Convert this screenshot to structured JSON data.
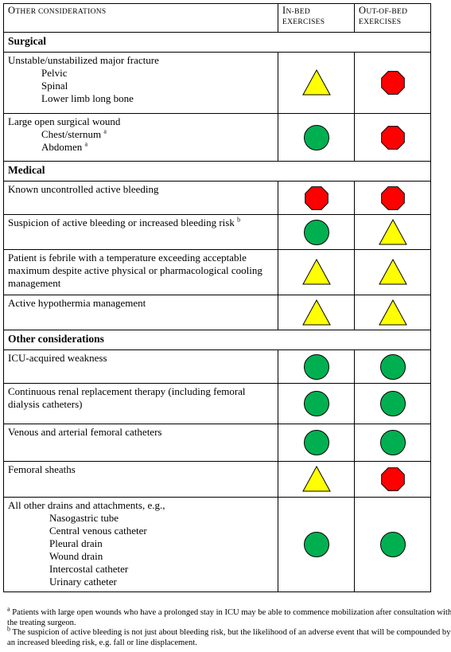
{
  "header": {
    "col1_prefix": "O",
    "col1_rest": "ther considerations",
    "col2_line1_prefix": "I",
    "col2_line1_rest": "n-bed",
    "col2_line2": "exercises",
    "col3_line1_prefix": "O",
    "col3_line1_rest": "ut-of-bed",
    "col3_line2": "exercises"
  },
  "sections": [
    {
      "title": "Surgical",
      "rows": [
        {
          "label": "Unstable/unstabilized major fracture",
          "subs": [
            "Pelvic",
            "Spinal",
            "Lower limb long bone"
          ],
          "sub_sup": [],
          "in_bed": "triangle",
          "out_bed": "octagon",
          "height": 77
        },
        {
          "label": "Large open surgical wound",
          "subs": [
            "Chest/sternum",
            "Abdomen"
          ],
          "sub_sup": [
            "a",
            "a"
          ],
          "in_bed": "circle",
          "out_bed": "octagon",
          "height": 60
        }
      ]
    },
    {
      "title": "Medical",
      "rows": [
        {
          "label": "Known uncontrolled active bleeding",
          "subs": [],
          "sub_sup": [],
          "in_bed": "octagon",
          "out_bed": "octagon",
          "height": 42
        },
        {
          "label": "Suspicion of active bleeding or increased bleeding risk",
          "label_sup": "b",
          "subs": [],
          "sub_sup": [],
          "in_bed": "circle",
          "out_bed": "triangle",
          "height": 44
        },
        {
          "label": "Patient is febrile with a temperature exceeding acceptable maximum despite active physical or pharmacological cooling management",
          "subs": [],
          "sub_sup": [],
          "in_bed": "triangle",
          "out_bed": "triangle",
          "height": 57
        },
        {
          "label": "Active hypothermia management",
          "subs": [],
          "sub_sup": [],
          "in_bed": "triangle",
          "out_bed": "triangle",
          "height": 44
        }
      ]
    },
    {
      "title": "Other considerations",
      "rows": [
        {
          "label": "ICU-acquired weakness",
          "subs": [],
          "sub_sup": [],
          "in_bed": "circle",
          "out_bed": "circle",
          "height": 42
        },
        {
          "label": "Continuous renal replacement therapy (including femoral dialysis catheters)",
          "subs": [],
          "sub_sup": [],
          "in_bed": "circle",
          "out_bed": "circle",
          "height": 51
        },
        {
          "label": "Venous and arterial femoral catheters",
          "subs": [],
          "sub_sup": [],
          "in_bed": "circle",
          "out_bed": "circle",
          "height": 47
        },
        {
          "label": "Femoral sheaths",
          "subs": [],
          "sub_sup": [],
          "in_bed": "triangle",
          "out_bed": "octagon",
          "height": 45
        },
        {
          "label": "All other drains and attachments, e.g.,",
          "subs": [
            "Nasogastric tube",
            "Central venous catheter",
            "Pleural drain",
            "Wound drain",
            "Intercostal catheter",
            "Urinary catheter"
          ],
          "sub_sup": [],
          "sub_wide": true,
          "in_bed": "circle",
          "out_bed": "circle",
          "height": 117
        }
      ]
    }
  ],
  "footnotes": [
    {
      "mark": "a",
      "text": "Patients with large open wounds who have a prolonged stay in ICU may be able to commence mobilization after consultation with the treating surgeon."
    },
    {
      "mark": "b",
      "text": "The suspicion of active bleeding is not just about bleeding risk, but the likelihood of an adverse event that will be compounded by an increased bleeding risk, e.g. fall or line displacement."
    }
  ],
  "colors": {
    "triangle_fill": "#ffff00",
    "circle_fill": "#00b050",
    "octagon_fill": "#ff0000"
  }
}
